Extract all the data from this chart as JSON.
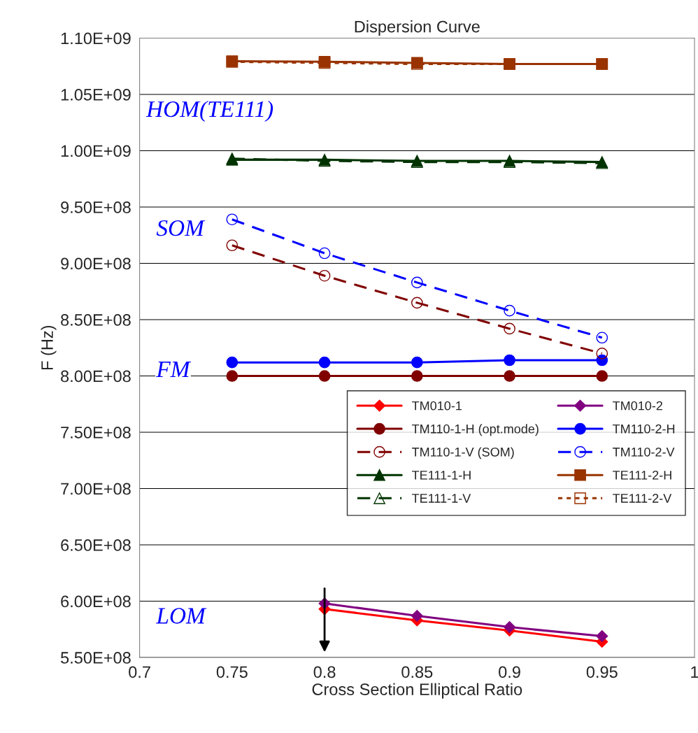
{
  "chart_data": {
    "type": "line",
    "title": "Dispersion Curve",
    "xlabel": "Cross Section Elliptical Ratio",
    "ylabel": "F (Hz)",
    "x": [
      0.75,
      0.8,
      0.85,
      0.9,
      0.95
    ],
    "series": [
      {
        "name": "TM010-1",
        "color": "#ff0000",
        "marker": "diamond",
        "line_style": "solid",
        "x": [
          0.8,
          0.85,
          0.9,
          0.95
        ],
        "values": [
          593000000,
          583000000,
          574000000,
          564000000
        ]
      },
      {
        "name": "TM010-2",
        "color": "#800080",
        "marker": "diamond",
        "line_style": "solid",
        "x": [
          0.8,
          0.85,
          0.9,
          0.95
        ],
        "values": [
          598000000,
          587000000,
          577000000,
          569000000
        ]
      },
      {
        "name": "TM110-1-H (opt.mode)",
        "color": "#800000",
        "marker": "circle",
        "line_style": "solid",
        "values": [
          800000000,
          800000000,
          800000000,
          800000000,
          800000000
        ]
      },
      {
        "name": "TM110-2-H",
        "color": "#0000ff",
        "marker": "circle",
        "line_style": "solid",
        "values": [
          812000000,
          812000000,
          812000000,
          814000000,
          814000000
        ]
      },
      {
        "name": "TM110-1-V (SOM)",
        "color": "#800000",
        "marker": "circle",
        "line_style": "dashed",
        "values": [
          916000000,
          889000000,
          865000000,
          842000000,
          820000000
        ]
      },
      {
        "name": "TM110-2-V",
        "color": "#0000ff",
        "marker": "circle",
        "line_style": "dashed",
        "values": [
          939000000,
          909000000,
          883000000,
          858000000,
          834000000
        ]
      },
      {
        "name": "TE111-1-H",
        "color": "#003300",
        "marker": "triangle",
        "line_style": "solid",
        "values": [
          992000000,
          992000000,
          991000000,
          991000000,
          990000000
        ]
      },
      {
        "name": "TE111-2-H",
        "color": "#993300",
        "marker": "square",
        "line_style": "solid",
        "values": [
          1079500000,
          1079000000,
          1078000000,
          1077000000,
          1077000000
        ]
      },
      {
        "name": "TE111-1-V",
        "color": "#003300",
        "marker": "triangle",
        "line_style": "dashed",
        "values": [
          993000000,
          991000000,
          990000000,
          990000000,
          989000000
        ]
      },
      {
        "name": "TE111-2-V",
        "color": "#993300",
        "marker": "square",
        "line_style": "dotted",
        "values": [
          1079000000,
          1078000000,
          1077000000,
          1077000000,
          1077000000
        ]
      }
    ],
    "xlim": [
      0.7,
      1
    ],
    "xticks": [
      0.7,
      0.75,
      0.8,
      0.85,
      0.9,
      0.95,
      1
    ],
    "ylim": [
      550000000,
      1100000000
    ],
    "yticks": [
      {
        "value": 550000000,
        "label": "5.50E+08"
      },
      {
        "value": 600000000,
        "label": "6.00E+08"
      },
      {
        "value": 650000000,
        "label": "6.50E+08"
      },
      {
        "value": 700000000,
        "label": "7.00E+08"
      },
      {
        "value": 750000000,
        "label": "7.50E+08"
      },
      {
        "value": 800000000,
        "label": "8.00E+08"
      },
      {
        "value": 850000000,
        "label": "8.50E+08"
      },
      {
        "value": 900000000,
        "label": "9.00E+08"
      },
      {
        "value": 950000000,
        "label": "9.50E+08"
      },
      {
        "value": 1000000000,
        "label": "1.00E+09"
      },
      {
        "value": 1050000000,
        "label": "1.05E+09"
      },
      {
        "value": 1100000000,
        "label": "1.10E+09"
      }
    ],
    "grid": "y",
    "legend": "right",
    "annotations": [
      "HOM(TE111)",
      "SOM",
      "FM",
      "LOM"
    ]
  }
}
